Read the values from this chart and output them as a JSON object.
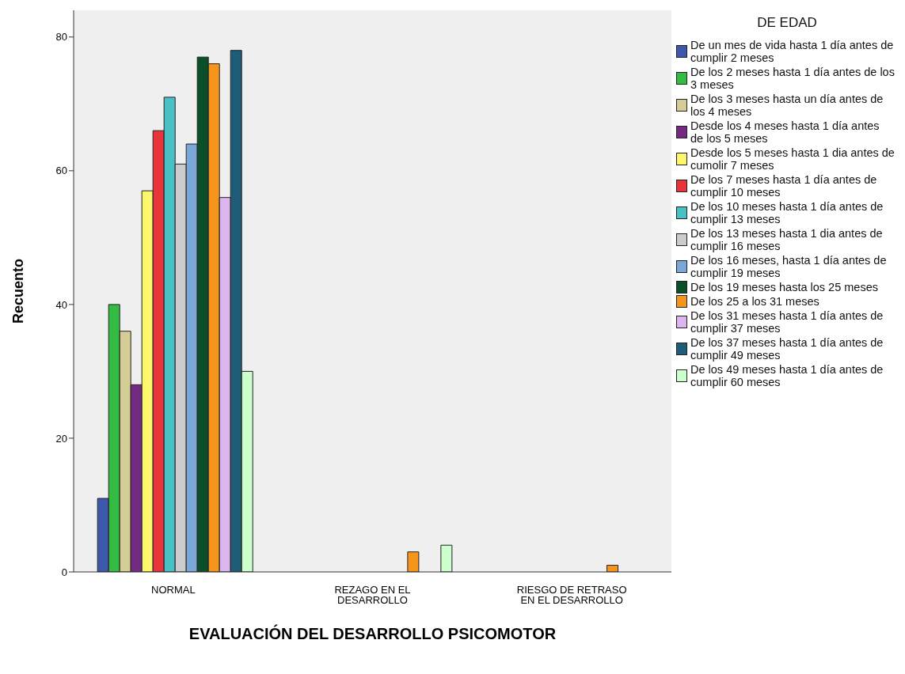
{
  "chart_data": {
    "type": "bar",
    "xlabel": "EVALUACIÓN DEL DESARROLLO PSICOMOTOR",
    "ylabel": "Recuento",
    "legend_title": "DE EDAD",
    "categories": [
      "NORMAL",
      "REZAGO EN EL DESARROLLO",
      "RIESGO DE RETRASO EN EL DESARROLLO"
    ],
    "ylim": [
      0,
      84
    ],
    "yticks": [
      0,
      20,
      40,
      60,
      80
    ],
    "grid": false,
    "legend": "right",
    "series": [
      {
        "name": "De un mes de vida hasta 1 día antes de cumplir 2 meses",
        "color": "#3e58ac",
        "values": [
          11,
          0,
          0
        ]
      },
      {
        "name": "De los 2 meses hasta 1 día antes de los 3 meses",
        "color": "#33bb44",
        "values": [
          40,
          0,
          0
        ]
      },
      {
        "name": "De los 3 meses hasta un día antes de los 4 meses",
        "color": "#d5cd95",
        "values": [
          36,
          0,
          0
        ]
      },
      {
        "name": "Desde los 4 meses hasta 1 día antes de los 5 meses",
        "color": "#742a83",
        "values": [
          28,
          0,
          0
        ]
      },
      {
        "name": "Desde los 5 meses hasta 1 dia antes de cumolir 7 meses",
        "color": "#fbf66c",
        "values": [
          57,
          0,
          0
        ]
      },
      {
        "name": "De los 7 meses hasta 1 día antes de cumplir 10 meses",
        "color": "#e8343a",
        "values": [
          66,
          0,
          0
        ]
      },
      {
        "name": "De los 10 meses hasta 1 día antes de cumplir 13 meses",
        "color": "#48c1c6",
        "values": [
          71,
          0,
          0
        ]
      },
      {
        "name": "De los 13 meses hasta 1 dia antes de cumplir 16 meses",
        "color": "#cccccc",
        "values": [
          61,
          0,
          0
        ]
      },
      {
        "name": "De los 16 meses, hasta 1 día antes de cumplir 19 meses",
        "color": "#7aa7d8",
        "values": [
          64,
          0,
          0
        ]
      },
      {
        "name": "De los 19 meses hasta los 25 meses",
        "color": "#0b4f2a",
        "values": [
          77,
          0,
          0
        ]
      },
      {
        "name": "De los 25 a los 31 meses",
        "color": "#f6951c",
        "values": [
          76,
          3,
          1
        ]
      },
      {
        "name": "De los 31 meses hasta 1 día antes de cumplir 37  meses",
        "color": "#dcb5ef",
        "values": [
          56,
          0,
          0
        ]
      },
      {
        "name": "De los 37 meses hasta 1 día antes de cumplir 49 meses",
        "color": "#1f5c78",
        "values": [
          78,
          0,
          0
        ]
      },
      {
        "name": "De los 49 meses hasta 1 día antes de cumplir 60 meses",
        "color": "#ccffcc",
        "values": [
          30,
          4,
          0
        ]
      }
    ]
  }
}
